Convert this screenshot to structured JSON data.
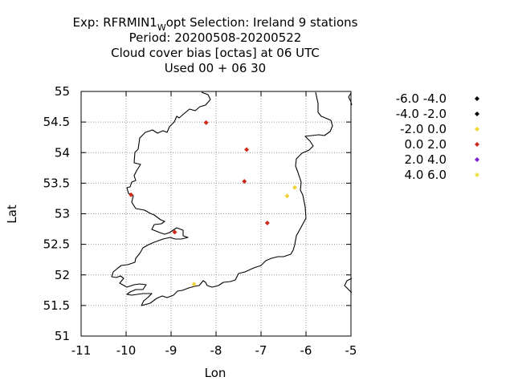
{
  "chart_data": {
    "type": "scatter",
    "title_lines": [
      {
        "before": "Exp: RFRMIN1",
        "subscript": "W",
        "after": "opt   Selection: Ireland      9 stations"
      },
      "Period: 20200508-20200522",
      "Cloud cover bias [octas] at  06 UTC",
      "Used  00 + 06 30"
    ],
    "xlabel": "Lon",
    "ylabel": "Lat",
    "xlim": [
      -11,
      -5
    ],
    "ylim": [
      51,
      55
    ],
    "xticks": [
      "-11",
      "-10",
      "-9",
      "-8",
      "-7",
      "-6",
      "-5"
    ],
    "yticks": [
      "51",
      "51.5",
      "52",
      "52.5",
      "53",
      "53.5",
      "54",
      "54.5",
      "55"
    ],
    "grid": true,
    "legend_position": "right",
    "series": [
      {
        "name": "-6.0 -4.0",
        "color": "#000000",
        "points": []
      },
      {
        "name": "-4.0 -2.0",
        "color": "#000000",
        "points": []
      },
      {
        "name": "-2.0 0.0",
        "color": "#f2d33a",
        "points": [
          [
            -8.49,
            51.85
          ],
          [
            -6.42,
            53.29
          ],
          [
            -6.25,
            53.43
          ]
        ]
      },
      {
        "name": "0.0 2.0",
        "color": "#cc2a1a",
        "points": [
          [
            -8.22,
            54.49
          ],
          [
            -7.32,
            54.05
          ],
          [
            -7.37,
            53.53
          ],
          [
            -9.89,
            53.31
          ],
          [
            -6.86,
            52.85
          ],
          [
            -8.92,
            52.7
          ]
        ]
      },
      {
        "name": "2.0 4.0",
        "color": "#7f1fd0",
        "points": []
      },
      {
        "name": "4.0 6.0",
        "color": "#f2e04a",
        "points": []
      }
    ]
  }
}
